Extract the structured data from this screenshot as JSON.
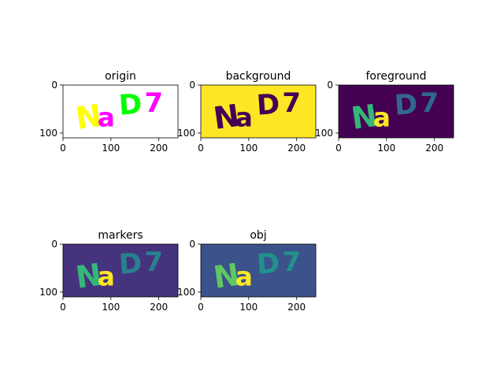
{
  "chart_data": [
    {
      "type": "image",
      "title": "origin",
      "image_size": [
        240,
        110
      ],
      "background": "#ffffff",
      "x_ticks": [
        0,
        100,
        200
      ],
      "y_ticks": [
        0,
        100
      ],
      "glyphs": [
        {
          "text": "N",
          "color": "#ffff00"
        },
        {
          "text": "a",
          "color": "#ff00ff"
        },
        {
          "text": "D",
          "color": "#00ff00"
        },
        {
          "text": "7",
          "color": "#ff00ff"
        }
      ]
    },
    {
      "type": "image",
      "title": "background",
      "image_size": [
        240,
        110
      ],
      "background": "#fde725",
      "x_ticks": [
        0,
        100,
        200
      ],
      "y_ticks": [
        0,
        100
      ],
      "glyphs": [
        {
          "text": "N",
          "color": "#440154"
        },
        {
          "text": "a",
          "color": "#440154"
        },
        {
          "text": "D",
          "color": "#440154"
        },
        {
          "text": "7",
          "color": "#440154"
        }
      ]
    },
    {
      "type": "image",
      "title": "foreground",
      "image_size": [
        240,
        110
      ],
      "background": "#440154",
      "x_ticks": [
        0,
        100,
        200
      ],
      "y_ticks": [
        0,
        100
      ],
      "glyphs": [
        {
          "text": "N",
          "color": "#35b779"
        },
        {
          "text": "a",
          "color": "#fde725"
        },
        {
          "text": "D",
          "color": "#31688e"
        },
        {
          "text": "7",
          "color": "#31688e"
        }
      ]
    },
    {
      "type": "image",
      "title": "markers",
      "image_size": [
        240,
        110
      ],
      "background": "#46337e",
      "x_ticks": [
        0,
        100,
        200
      ],
      "y_ticks": [
        0,
        100
      ],
      "glyphs": [
        {
          "text": "N",
          "color": "#35b779"
        },
        {
          "text": "a",
          "color": "#fde725"
        },
        {
          "text": "D",
          "color": "#26828e"
        },
        {
          "text": "7",
          "color": "#26828e"
        }
      ]
    },
    {
      "type": "image",
      "title": "obj",
      "image_size": [
        240,
        110
      ],
      "background": "#3b528b",
      "x_ticks": [
        0,
        100,
        200
      ],
      "y_ticks": [
        0,
        100
      ],
      "glyphs": [
        {
          "text": "N",
          "color": "#5ec962"
        },
        {
          "text": "a",
          "color": "#fde725"
        },
        {
          "text": "D",
          "color": "#21918c"
        },
        {
          "text": "7",
          "color": "#21918c"
        }
      ]
    }
  ]
}
